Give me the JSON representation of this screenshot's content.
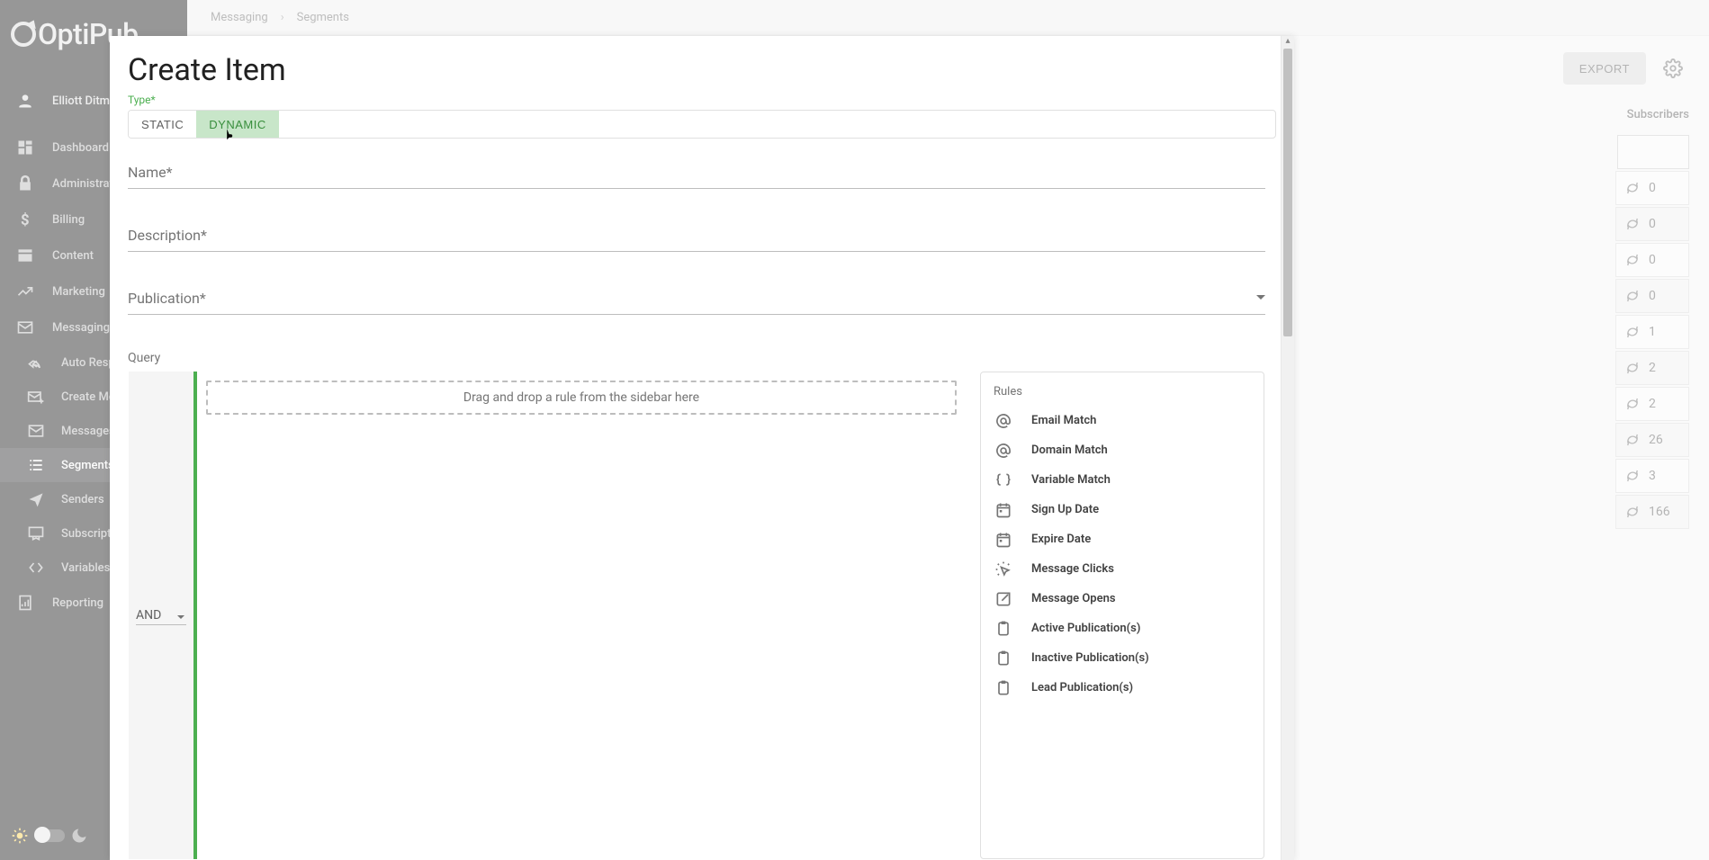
{
  "app": {
    "logo_text": "OptiPub"
  },
  "user": {
    "name": "Elliott Ditman"
  },
  "nav": {
    "dashboard": "Dashboard",
    "administration": "Administration",
    "billing": "Billing",
    "content": "Content",
    "marketing": "Marketing",
    "messaging": "Messaging",
    "reporting": "Reporting",
    "sub": {
      "auto_responders": "Auto Responders",
      "create_message": "Create Message",
      "messages": "Messages",
      "segments": "Segments",
      "senders": "Senders",
      "subscriptions": "Subscriptions",
      "variables": "Variables"
    }
  },
  "breadcrumb": {
    "a": "Messaging",
    "b": "Segments"
  },
  "toolbar": {
    "export": "EXPORT"
  },
  "table": {
    "subs_header": "Subscribers",
    "subs": [
      "0",
      "0",
      "0",
      "0",
      "1",
      "2",
      "2",
      "26",
      "3",
      "166"
    ]
  },
  "modal": {
    "title": "Create Item",
    "type_label": "Type*",
    "toggle": {
      "static": "STATIC",
      "dynamic": "DYNAMIC"
    },
    "name_label": "Name*",
    "description_label": "Description*",
    "publication_label": "Publication*",
    "query_label": "Query",
    "dropzone_text": "Drag and drop a rule from the sidebar here",
    "operator": "AND",
    "rules_title": "Rules",
    "rules": [
      {
        "icon": "at",
        "label": "Email Match"
      },
      {
        "icon": "at",
        "label": "Domain Match"
      },
      {
        "icon": "braces",
        "label": "Variable Match"
      },
      {
        "icon": "calendar",
        "label": "Sign Up Date"
      },
      {
        "icon": "calendar",
        "label": "Expire Date"
      },
      {
        "icon": "click",
        "label": "Message Clicks"
      },
      {
        "icon": "open",
        "label": "Message Opens"
      },
      {
        "icon": "clipboard",
        "label": "Active Publication(s)"
      },
      {
        "icon": "clipboard",
        "label": "Inactive Publication(s)"
      },
      {
        "icon": "clipboard",
        "label": "Lead Publication(s)"
      }
    ]
  }
}
